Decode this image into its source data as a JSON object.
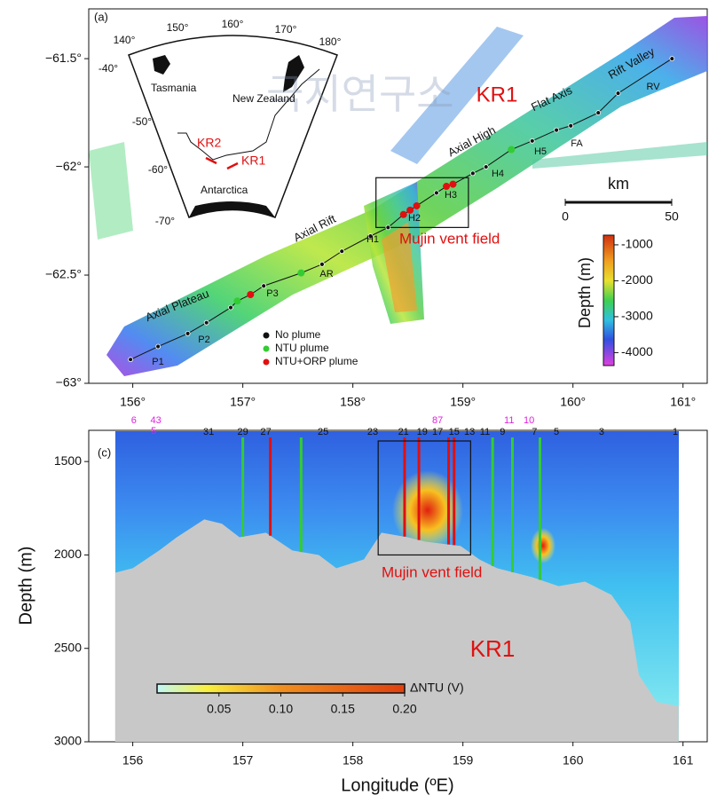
{
  "watermark": "극지연구소",
  "chart_data": [
    {
      "type": "map",
      "panel": "(a)",
      "xlim": [
        155.6,
        161.22
      ],
      "ylim": [
        -63,
        -61.27
      ],
      "xticks": [
        {
          "value": 156,
          "label": "156°"
        },
        {
          "value": 157,
          "label": "157°"
        },
        {
          "value": 158,
          "label": "158°"
        },
        {
          "value": 159,
          "label": "159°"
        },
        {
          "value": 160,
          "label": "160°"
        },
        {
          "value": 161,
          "label": "161°"
        }
      ],
      "yticks": [
        {
          "value": -63,
          "label": "−63°"
        },
        {
          "value": -62.5,
          "label": "−62.5°"
        },
        {
          "value": -62,
          "label": "−62°"
        },
        {
          "value": -61.5,
          "label": "−61.5°"
        }
      ],
      "annotations": [
        "KR1",
        "Mujin vent field",
        "Axial Plateau",
        "Axial Rift",
        "Axial High",
        "Flat Axis",
        "Rift Valley"
      ],
      "site_labels": [
        "P1",
        "P2",
        "P3",
        "AR",
        "H1",
        "H2",
        "H3",
        "H4",
        "H5",
        "FA",
        "RV"
      ],
      "legend": [
        {
          "name": "No plume",
          "color": "#111111"
        },
        {
          "name": "NTU plume",
          "color": "#33cc33"
        },
        {
          "name": "NTU+ORP plume",
          "color": "#e01010"
        }
      ],
      "stations": {
        "x": [
          155.98,
          156.23,
          156.5,
          156.67,
          156.89,
          156.95,
          157.07,
          157.19,
          157.53,
          157.72,
          157.9,
          158.16,
          158.32,
          158.46,
          158.52,
          158.58,
          158.76,
          158.85,
          158.91,
          159.09,
          159.21,
          159.44,
          159.63,
          159.85,
          159.98,
          160.23,
          160.41,
          160.9
        ],
        "y": [
          -62.89,
          -62.83,
          -62.77,
          -62.72,
          -62.65,
          -62.62,
          -62.59,
          -62.55,
          -62.49,
          -62.45,
          -62.39,
          -62.32,
          -62.28,
          -62.22,
          -62.2,
          -62.18,
          -62.12,
          -62.09,
          -62.08,
          -62.03,
          -62.0,
          -61.92,
          -61.88,
          -61.83,
          -61.81,
          -61.75,
          -61.66,
          -61.5
        ],
        "plume": [
          0,
          0,
          0,
          0,
          0,
          1,
          2,
          0,
          1,
          0,
          0,
          0,
          0,
          2,
          2,
          2,
          0,
          2,
          2,
          0,
          0,
          1,
          0,
          0,
          0,
          0,
          0,
          0
        ]
      },
      "box": {
        "x": [
          158.21,
          159.05
        ],
        "y": [
          -62.28,
          -62.05
        ]
      },
      "scale_bar": {
        "label": "km",
        "ticks": [
          0,
          50
        ]
      },
      "colorbar": {
        "label": "Depth (m)",
        "clim": [
          -4360,
          -730
        ],
        "ticks": [
          -1000,
          -2000,
          -3000,
          -4000
        ]
      },
      "inset": {
        "labels": [
          "Tasmania",
          "New Zealand",
          "Antarctica",
          "KR2",
          "KR1"
        ],
        "ticks": [
          "140°",
          "150°",
          "160°",
          "170°",
          "180°",
          "-40°",
          "-50°",
          "-60°",
          "-70°"
        ]
      }
    },
    {
      "type": "section",
      "panel": "(c)",
      "xlabel": "Longitude (ºE)",
      "ylabel": "Depth (m)",
      "xlim": [
        155.6,
        161.22
      ],
      "ylim": [
        3000,
        1333
      ],
      "xticks": [
        156,
        157,
        158,
        159,
        160,
        161
      ],
      "yticks": [
        1500,
        2000,
        2500,
        3000
      ],
      "annotations": [
        "KR1",
        "Mujin vent field"
      ],
      "seafloor": {
        "x": [
          155.84,
          156.0,
          156.24,
          156.4,
          156.65,
          156.81,
          156.97,
          157.21,
          157.45,
          157.69,
          157.85,
          158.1,
          158.26,
          158.5,
          158.66,
          158.98,
          159.15,
          159.31,
          159.63,
          159.87,
          160.11,
          160.35,
          160.52,
          160.6,
          160.76,
          160.96
        ],
        "y": [
          2095,
          2071,
          1976,
          1905,
          1810,
          1833,
          1905,
          1881,
          1976,
          2000,
          2071,
          2024,
          1881,
          1905,
          1929,
          1952,
          2024,
          2071,
          2119,
          2167,
          2143,
          2214,
          2357,
          2643,
          2786,
          2810
        ]
      },
      "casts": {
        "x": [
          157.0,
          157.25,
          157.53,
          158.47,
          158.6,
          158.87,
          158.92,
          159.27,
          159.45,
          159.7
        ],
        "plume": [
          1,
          2,
          1,
          2,
          2,
          2,
          2,
          1,
          1,
          1
        ]
      },
      "station_labels": {
        "text": [
          "31",
          "29",
          "27",
          "25",
          "23",
          "21",
          "19",
          "17",
          "15",
          "13",
          "11",
          "9",
          "7",
          "5",
          "3",
          "1",
          "6",
          "43",
          "5",
          "87",
          "11",
          "10"
        ],
        "x": [
          156.69,
          157.0,
          157.21,
          157.73,
          158.18,
          158.46,
          158.63,
          158.77,
          158.92,
          159.06,
          159.2,
          159.36,
          159.65,
          159.85,
          160.26,
          160.93,
          156.01,
          156.21,
          156.19,
          158.77,
          159.42,
          159.6
        ],
        "color": [
          "#111111",
          "#111111",
          "#111111",
          "#111111",
          "#111111",
          "#111111",
          "#111111",
          "#111111",
          "#111111",
          "#111111",
          "#111111",
          "#111111",
          "#111111",
          "#111111",
          "#111111",
          "#111111",
          "#e020e0",
          "#e020e0",
          "#e020e0",
          "#e020e0",
          "#e020e0",
          "#e020e0"
        ]
      },
      "box": {
        "x": [
          158.23,
          159.07
        ],
        "y": [
          2000,
          1390
        ]
      },
      "colorbar": {
        "label": "ΔNTU (V)",
        "clim": [
          0,
          0.2
        ],
        "ticks": [
          0.05,
          {
            "value": 0.1,
            "label": "0.10"
          },
          0.15,
          {
            "value": 0.2,
            "label": "0.20"
          }
        ]
      }
    }
  ]
}
